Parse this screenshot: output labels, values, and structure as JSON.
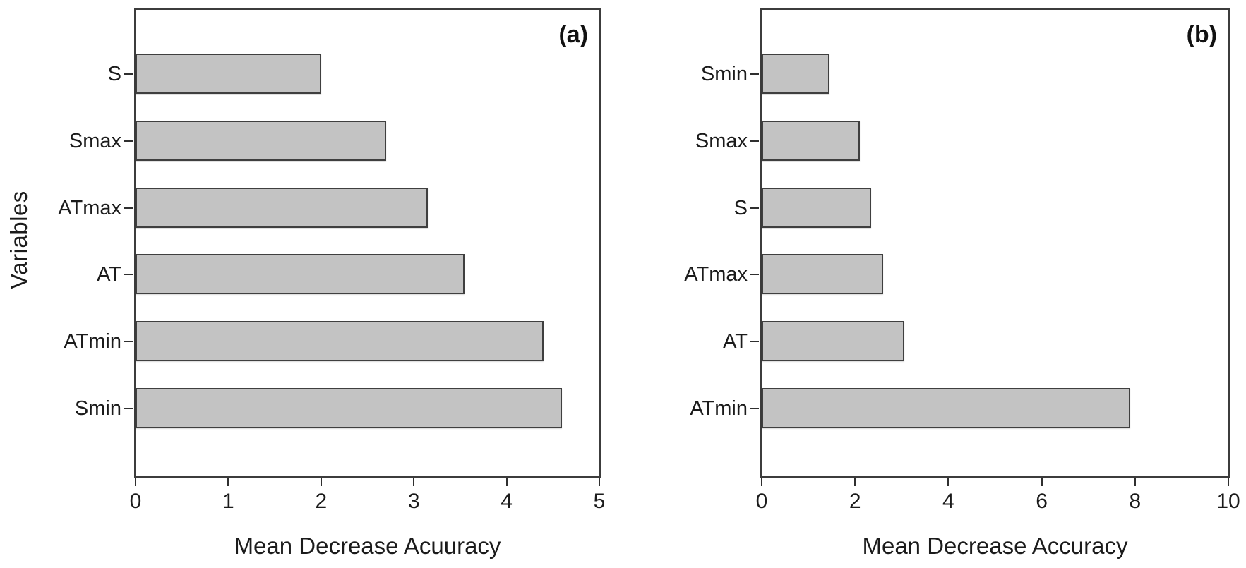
{
  "figure": {
    "y_axis_title": "Variables",
    "background_color": "#ffffff",
    "bar_fill_color": "#c3c3c3",
    "bar_border_color": "#3f3f3f",
    "axis_color": "#2f2f2f",
    "text_color": "#1b1b1b"
  },
  "chart_data": [
    {
      "type": "bar",
      "orientation": "horizontal",
      "panel_label": "(a)",
      "xlabel": "Mean Decrease Acuuracy",
      "ylabel": "Variables",
      "categories": [
        "S",
        "Smax",
        "ATmax",
        "AT",
        "ATmin",
        "Smin"
      ],
      "values": [
        2.0,
        2.7,
        3.15,
        3.55,
        4.4,
        4.6
      ],
      "xlim": [
        0,
        5
      ],
      "xticks": [
        0,
        1,
        2,
        3,
        4,
        5
      ],
      "grid": false,
      "legend": null,
      "category_order_note": "listed top to bottom"
    },
    {
      "type": "bar",
      "orientation": "horizontal",
      "panel_label": "(b)",
      "xlabel": "Mean Decrease Accuracy",
      "ylabel": "",
      "categories": [
        "Smin",
        "Smax",
        "S",
        "ATmax",
        "AT",
        "ATmin"
      ],
      "values": [
        1.45,
        2.1,
        2.35,
        2.6,
        3.05,
        7.9
      ],
      "xlim": [
        0,
        10
      ],
      "xticks": [
        0,
        2,
        4,
        6,
        8,
        10
      ],
      "grid": false,
      "legend": null,
      "category_order_note": "listed top to bottom"
    }
  ]
}
